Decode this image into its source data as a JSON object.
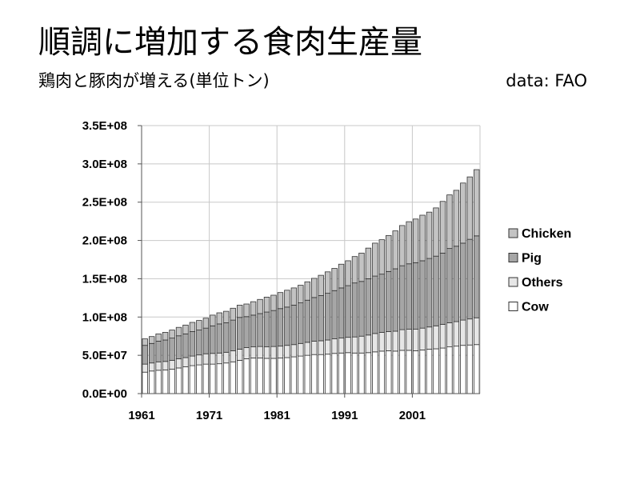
{
  "title": "順調に増加する食肉生産量",
  "subtitle": "鶏肉と豚肉が増える(単位トン)",
  "source": "data: FAO",
  "colors": {
    "Cow": "#ffffff",
    "Others": "#e6e6e6",
    "Pig": "#a6a6a6",
    "Chicken": "#c3c3c3",
    "bar_stroke": "#333333",
    "grid": "#c8c8c8"
  },
  "chart_data": {
    "type": "bar",
    "stacked": true,
    "x": [
      1961,
      1962,
      1963,
      1964,
      1965,
      1966,
      1967,
      1968,
      1969,
      1970,
      1971,
      1972,
      1973,
      1974,
      1975,
      1976,
      1977,
      1978,
      1979,
      1980,
      1981,
      1982,
      1983,
      1984,
      1985,
      1986,
      1987,
      1988,
      1989,
      1990,
      1991,
      1992,
      1993,
      1994,
      1995,
      1996,
      1997,
      1998,
      1999,
      2000,
      2001,
      2002,
      2003,
      2004,
      2005,
      2006,
      2007,
      2008,
      2009,
      2010
    ],
    "x_tick_labels": [
      "1961",
      "1971",
      "1981",
      "1991",
      "2001"
    ],
    "x_tick_values": [
      1961,
      1971,
      1981,
      1991,
      2001
    ],
    "y_tick_labels": [
      "0.0E+00",
      "5.0E+07",
      "1.0E+08",
      "1.5E+08",
      "2.0E+08",
      "2.5E+08",
      "3.0E+08",
      "3.5E+08"
    ],
    "ylim": [
      0,
      350000000
    ],
    "grid": true,
    "legend_position": "right",
    "legend_order": [
      "Chicken",
      "Pig",
      "Others",
      "Cow"
    ],
    "series": [
      {
        "name": "Cow",
        "values": [
          28.0,
          29.5,
          30.5,
          31.0,
          32.0,
          33.5,
          35.0,
          36.5,
          37.5,
          38.5,
          38.5,
          39.0,
          40.0,
          41.5,
          43.5,
          45.5,
          46.5,
          46.5,
          46.0,
          46.0,
          46.5,
          47.0,
          48.0,
          49.0,
          50.0,
          51.0,
          51.0,
          51.5,
          52.5,
          53.0,
          53.5,
          53.0,
          53.0,
          53.5,
          54.5,
          55.5,
          56.0,
          55.5,
          56.5,
          56.5,
          56.0,
          57.0,
          58.0,
          58.5,
          59.5,
          61.0,
          62.0,
          63.0,
          63.5,
          64.0
        ]
      },
      {
        "name": "Others",
        "values": [
          10.5,
          10.5,
          11.0,
          11.0,
          11.5,
          12.0,
          12.0,
          12.5,
          13.0,
          13.5,
          14.0,
          14.0,
          14.0,
          14.5,
          14.5,
          14.5,
          14.5,
          15.0,
          15.0,
          15.5,
          15.5,
          16.0,
          16.0,
          16.5,
          17.0,
          17.5,
          18.0,
          18.5,
          19.0,
          19.5,
          20.0,
          21.0,
          22.0,
          23.0,
          24.0,
          24.5,
          25.0,
          26.0,
          27.0,
          27.5,
          28.0,
          28.5,
          29.0,
          30.0,
          31.0,
          31.5,
          32.0,
          33.0,
          34.0,
          35.0
        ]
      },
      {
        "name": "Pig",
        "values": [
          24.5,
          25.5,
          27.0,
          28.0,
          29.0,
          30.0,
          31.0,
          32.0,
          32.5,
          33.5,
          36.0,
          38.0,
          38.5,
          40.0,
          41.5,
          40.5,
          41.5,
          43.0,
          45.5,
          47.0,
          49.0,
          50.0,
          51.5,
          53.0,
          55.0,
          57.0,
          59.0,
          61.0,
          63.0,
          65.5,
          67.5,
          70.5,
          71.5,
          73.5,
          75.0,
          76.0,
          78.5,
          81.5,
          83.5,
          85.5,
          87.0,
          88.0,
          89.5,
          91.0,
          93.0,
          97.0,
          98.5,
          100.5,
          104.0,
          107.0
        ]
      },
      {
        "name": "Chicken",
        "values": [
          8.5,
          9.0,
          9.5,
          10.0,
          10.5,
          11.0,
          11.5,
          12.0,
          12.5,
          13.0,
          14.0,
          14.5,
          15.0,
          15.5,
          16.0,
          16.5,
          17.5,
          18.5,
          19.5,
          20.0,
          21.0,
          22.0,
          22.5,
          23.0,
          24.0,
          25.0,
          26.5,
          28.0,
          29.0,
          31.0,
          32.5,
          34.5,
          37.0,
          40.0,
          43.0,
          45.0,
          47.0,
          49.5,
          52.5,
          55.0,
          57.0,
          59.5,
          60.5,
          63.0,
          67.5,
          70.0,
          73.0,
          78.5,
          81.5,
          86.5
        ]
      }
    ],
    "value_unit_multiplier": 1000000
  }
}
